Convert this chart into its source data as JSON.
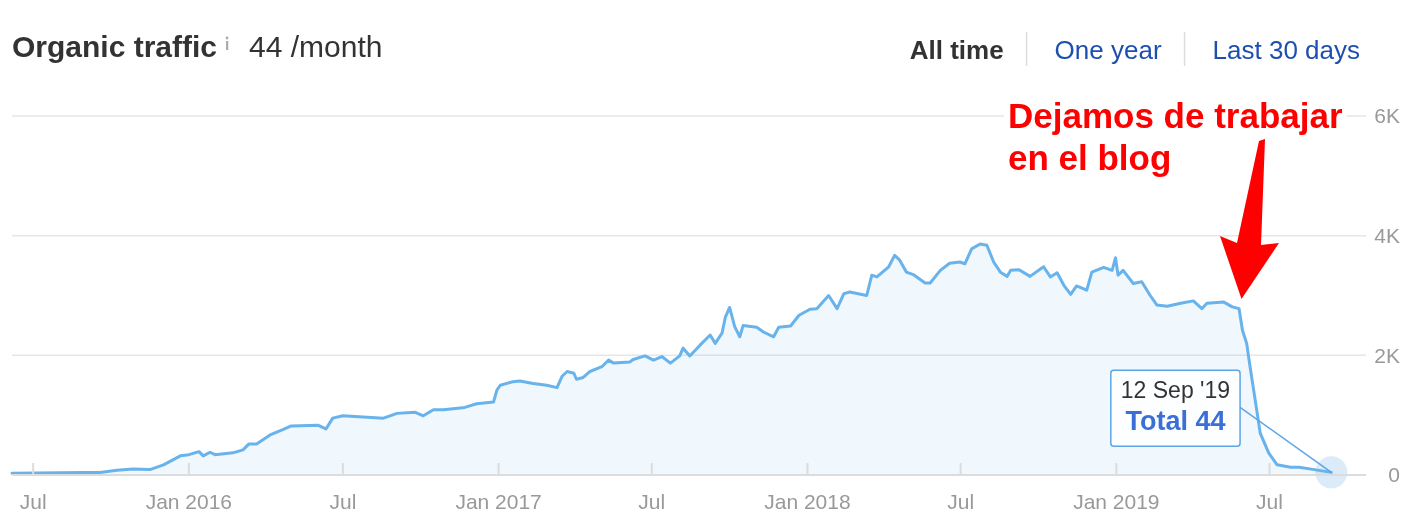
{
  "chart_data": {
    "type": "area",
    "title": "Organic traffic",
    "subtitle": "44 /month",
    "x": [
      "2015-06-06",
      "2015-08-29",
      "2015-09-18",
      "2015-10-08",
      "2015-10-27",
      "2015-11-16",
      "2015-12-02",
      "2015-12-22",
      "2016-01-01",
      "2016-01-13",
      "2016-01-18",
      "2016-01-26",
      "2016-02-01",
      "2016-02-22",
      "2016-03-05",
      "2016-03-12",
      "2016-03-21",
      "2016-04-06",
      "2016-04-21",
      "2016-05-01",
      "2016-06-02",
      "2016-06-11",
      "2016-06-19",
      "2016-07-01",
      "2016-08-18",
      "2016-09-03",
      "2016-09-24",
      "2016-10-04",
      "2016-10-16",
      "2016-10-28",
      "2016-11-22",
      "2016-12-06",
      "2016-12-26",
      "2016-12-30",
      "2017-01-03",
      "2017-01-18",
      "2017-01-26",
      "2017-02-11",
      "2017-02-27",
      "2017-03-11",
      "2017-03-17",
      "2017-03-23",
      "2017-03-31",
      "2017-04-03",
      "2017-04-11",
      "2017-04-19",
      "2017-05-03",
      "2017-05-11",
      "2017-05-17",
      "2017-06-05",
      "2017-06-09",
      "2017-06-23",
      "2017-07-03",
      "2017-07-13",
      "2017-07-23",
      "2017-08-03",
      "2017-08-07",
      "2017-08-15",
      "2017-08-27",
      "2017-09-08",
      "2017-09-14",
      "2017-09-22",
      "2017-09-26",
      "2017-10-01",
      "2017-10-07",
      "2017-10-13",
      "2017-10-17",
      "2017-11-02",
      "2017-11-10",
      "2017-11-22",
      "2017-11-28",
      "2017-12-12",
      "2017-12-22",
      "2018-01-04",
      "2018-01-12",
      "2018-01-26",
      "2018-02-05",
      "2018-02-13",
      "2018-02-20",
      "2018-03-12",
      "2018-03-18",
      "2018-03-24",
      "2018-04-07",
      "2018-04-14",
      "2018-04-20",
      "2018-04-28",
      "2018-05-06",
      "2018-05-20",
      "2018-05-26",
      "2018-06-07",
      "2018-06-18",
      "2018-06-30",
      "2018-07-06",
      "2018-07-14",
      "2018-07-24",
      "2018-08-01",
      "2018-08-09",
      "2018-08-17",
      "2018-08-25",
      "2018-08-29",
      "2018-09-08",
      "2018-09-21",
      "2018-10-07",
      "2018-10-15",
      "2018-10-23",
      "2018-10-31",
      "2018-11-08",
      "2018-11-15",
      "2018-11-27",
      "2018-12-03",
      "2018-12-17",
      "2018-12-27",
      "2018-12-31",
      "2019-01-03",
      "2019-01-09",
      "2019-01-21",
      "2019-01-31",
      "2019-02-10",
      "2019-02-18",
      "2019-03-02",
      "2019-03-18",
      "2019-04-02",
      "2019-04-12",
      "2019-04-18",
      "2019-05-08",
      "2019-05-18",
      "2019-05-26",
      "2019-05-30",
      "2019-06-04",
      "2019-06-08",
      "2019-06-14",
      "2019-06-20",
      "2019-06-30",
      "2019-07-10",
      "2019-07-26",
      "2019-08-05",
      "2019-08-23",
      "2019-09-12"
    ],
    "values": [
      30,
      40,
      40,
      80,
      100,
      90,
      170,
      320,
      340,
      390,
      320,
      380,
      340,
      370,
      420,
      520,
      520,
      670,
      760,
      820,
      830,
      770,
      950,
      990,
      950,
      1030,
      1050,
      990,
      1090,
      1090,
      1130,
      1190,
      1220,
      1420,
      1500,
      1560,
      1570,
      1530,
      1500,
      1460,
      1650,
      1730,
      1700,
      1600,
      1630,
      1730,
      1810,
      1920,
      1870,
      1890,
      1930,
      1990,
      1920,
      1980,
      1870,
      1990,
      2120,
      1990,
      2170,
      2340,
      2200,
      2370,
      2640,
      2800,
      2480,
      2310,
      2500,
      2470,
      2390,
      2310,
      2470,
      2490,
      2670,
      2770,
      2780,
      3000,
      2780,
      3030,
      3060,
      3000,
      3340,
      3310,
      3480,
      3670,
      3590,
      3390,
      3350,
      3210,
      3210,
      3420,
      3540,
      3560,
      3530,
      3780,
      3860,
      3840,
      3560,
      3390,
      3320,
      3420,
      3430,
      3320,
      3480,
      3310,
      3380,
      3170,
      3020,
      3160,
      3090,
      3390,
      3470,
      3420,
      3630,
      3340,
      3420,
      3200,
      3230,
      3000,
      2840,
      2820,
      2870,
      2910,
      2780,
      2870,
      2890,
      2810,
      2780,
      2420,
      2200,
      1810,
      1260,
      700,
      370,
      170,
      130,
      130,
      90,
      44
    ],
    "color": "#68b3ec",
    "xlim": [
      "2015-06-06",
      "2019-10-23"
    ],
    "xticks": [
      {
        "value": "2015-07-01",
        "label": "Jul"
      },
      {
        "value": "2016-01-01",
        "label": "Jan 2016"
      },
      {
        "value": "2016-07-01",
        "label": "Jul"
      },
      {
        "value": "2017-01-01",
        "label": "Jan 2017"
      },
      {
        "value": "2017-07-01",
        "label": "Jul"
      },
      {
        "value": "2018-01-01",
        "label": "Jan 2018"
      },
      {
        "value": "2018-07-01",
        "label": "Jul"
      },
      {
        "value": "2019-01-01",
        "label": "Jan 2019"
      },
      {
        "value": "2019-07-01",
        "label": "Jul"
      }
    ],
    "ylim": [
      0,
      6000
    ],
    "yticks": [
      0,
      {
        "value": 2000,
        "label": "2K"
      },
      {
        "value": 4000,
        "label": "4K"
      },
      {
        "value": 6000,
        "label": "6K"
      }
    ],
    "grid": "y",
    "annotations": [
      "All time",
      "One year",
      "Last 30 days",
      "Dejamos de trabajar en el blog",
      {
        "text": "12 Sep '19",
        "x": "2019-09-12",
        "y": 44
      },
      {
        "text": "Total 44",
        "x": "2019-09-12",
        "y": 44
      }
    ]
  }
}
